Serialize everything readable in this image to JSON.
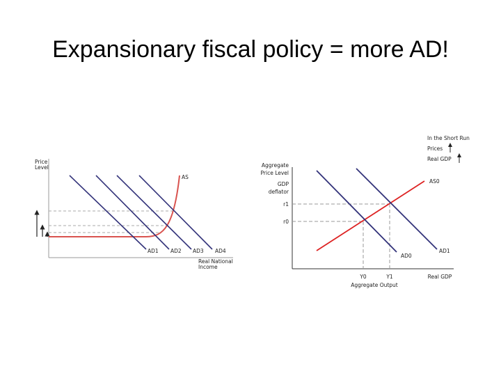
{
  "header": {
    "title": "Expansionary fiscal policy = more AD!"
  },
  "left_diagram": {
    "y_axis_label": [
      "Price",
      "Level"
    ],
    "x_axis_label": [
      "Real National",
      "Income"
    ],
    "curves": [
      "AS",
      "AD1",
      "AD2",
      "AD3",
      "AD4"
    ]
  },
  "right_diagram": {
    "y_axis_label": [
      "Aggregate",
      "Price Level",
      "GDP",
      "deflator"
    ],
    "y_levels": [
      "r1",
      "r0"
    ],
    "x_levels": [
      "Y0",
      "Y1"
    ],
    "x_axis_label": "Aggregate Output",
    "x_axis_end": "Real GDP",
    "curves": [
      "AS0",
      "AD0",
      "AD1"
    ],
    "legend": [
      "In the Short Run",
      "Prices",
      "Real GDP"
    ]
  }
}
